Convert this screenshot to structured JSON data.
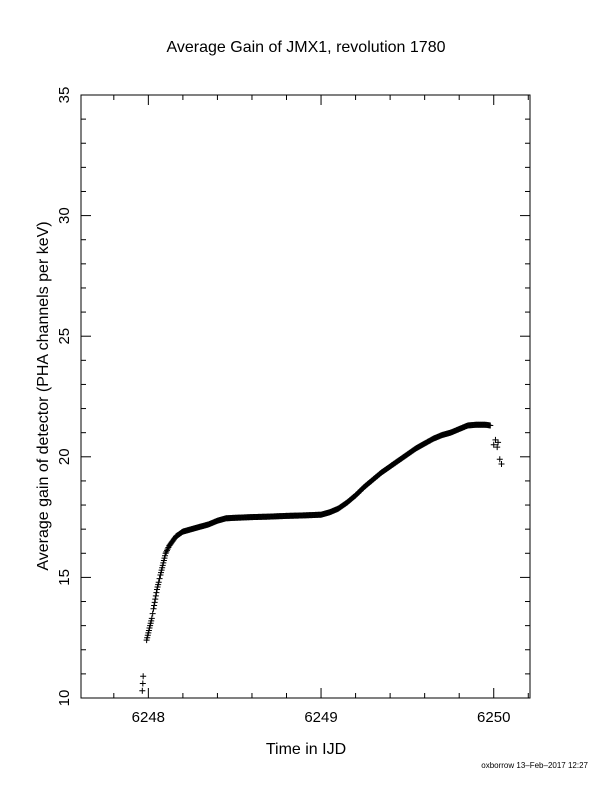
{
  "chart_data": {
    "type": "scatter",
    "title": "Average Gain of JMX1, revolution 1780",
    "xlabel": "Time in IJD",
    "ylabel": "Average gain of detector (PHA channels per keV)",
    "xlim": [
      6247.61,
      6250.21
    ],
    "ylim": [
      10,
      35
    ],
    "xticks": [
      6248,
      6249,
      6250
    ],
    "yticks": [
      10,
      15,
      20,
      25,
      30,
      35
    ],
    "grid": false,
    "marker": "+",
    "footer": "oxborrow 13–Feb–2017 12:27",
    "curve": [
      [
        6247.99,
        12.4
      ],
      [
        6248.0,
        12.7
      ],
      [
        6248.01,
        13.0
      ],
      [
        6248.02,
        13.3
      ],
      [
        6248.03,
        13.7
      ],
      [
        6248.04,
        14.1
      ],
      [
        6248.05,
        14.5
      ],
      [
        6248.06,
        14.8
      ],
      [
        6248.07,
        15.1
      ],
      [
        6248.08,
        15.4
      ],
      [
        6248.09,
        15.7
      ],
      [
        6248.1,
        16.0
      ],
      [
        6248.12,
        16.3
      ],
      [
        6248.14,
        16.5
      ],
      [
        6248.16,
        16.7
      ],
      [
        6248.18,
        16.8
      ],
      [
        6248.2,
        16.9
      ],
      [
        6248.25,
        17.0
      ],
      [
        6248.3,
        17.1
      ],
      [
        6248.35,
        17.2
      ],
      [
        6248.4,
        17.35
      ],
      [
        6248.45,
        17.45
      ],
      [
        6248.5,
        17.47
      ],
      [
        6248.6,
        17.5
      ],
      [
        6248.7,
        17.52
      ],
      [
        6248.8,
        17.55
      ],
      [
        6248.9,
        17.57
      ],
      [
        6249.0,
        17.6
      ],
      [
        6249.05,
        17.7
      ],
      [
        6249.1,
        17.85
      ],
      [
        6249.15,
        18.1
      ],
      [
        6249.2,
        18.4
      ],
      [
        6249.25,
        18.75
      ],
      [
        6249.3,
        19.05
      ],
      [
        6249.35,
        19.35
      ],
      [
        6249.4,
        19.6
      ],
      [
        6249.45,
        19.85
      ],
      [
        6249.5,
        20.1
      ],
      [
        6249.55,
        20.35
      ],
      [
        6249.6,
        20.55
      ],
      [
        6249.65,
        20.75
      ],
      [
        6249.7,
        20.9
      ],
      [
        6249.75,
        21.0
      ],
      [
        6249.8,
        21.15
      ],
      [
        6249.85,
        21.3
      ],
      [
        6249.9,
        21.33
      ],
      [
        6249.95,
        21.33
      ],
      [
        6249.98,
        21.3
      ]
    ],
    "points": [
      [
        6247.965,
        10.3
      ],
      [
        6247.968,
        10.6
      ],
      [
        6247.97,
        10.9
      ],
      [
        6250.0,
        20.5
      ],
      [
        6250.01,
        20.7
      ],
      [
        6250.02,
        20.4
      ],
      [
        6250.025,
        20.6
      ],
      [
        6250.035,
        19.9
      ],
      [
        6250.045,
        19.7
      ]
    ]
  }
}
